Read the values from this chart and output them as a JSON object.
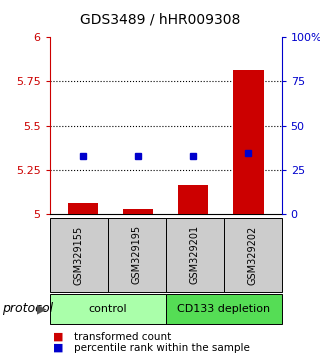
{
  "title": "GDS3489 / hHR009308",
  "samples": [
    "GSM329155",
    "GSM329195",
    "GSM329201",
    "GSM329202"
  ],
  "bar_values": [
    5.065,
    5.03,
    5.165,
    5.815
  ],
  "dot_values": [
    5.33,
    5.33,
    5.33,
    5.345
  ],
  "ylim": [
    5.0,
    6.0
  ],
  "yticks_left": [
    5.0,
    5.25,
    5.5,
    5.75,
    6.0
  ],
  "yticks_right": [
    0,
    25,
    50,
    75,
    100
  ],
  "ytick_labels_left": [
    "5",
    "5.25",
    "5.5",
    "5.75",
    "6"
  ],
  "ytick_labels_right": [
    "0",
    "25",
    "50",
    "75",
    "100%"
  ],
  "bar_color": "#cc0000",
  "dot_color": "#0000cc",
  "bar_base": 5.0,
  "groups": [
    {
      "label": "control",
      "samples_idx": [
        0,
        1
      ],
      "color": "#aaffaa"
    },
    {
      "label": "CD133 depletion",
      "samples_idx": [
        2,
        3
      ],
      "color": "#55dd55"
    }
  ],
  "protocol_label": "protocol",
  "legend_bar_label": "transformed count",
  "legend_dot_label": "percentile rank within the sample",
  "sample_box_color": "#cccccc",
  "axis_color_left": "#cc0000",
  "axis_color_right": "#0000cc",
  "title_fontsize": 10,
  "tick_fontsize": 8,
  "sample_fontsize": 7,
  "proto_fontsize": 9,
  "group_fontsize": 8,
  "legend_fontsize": 7.5
}
